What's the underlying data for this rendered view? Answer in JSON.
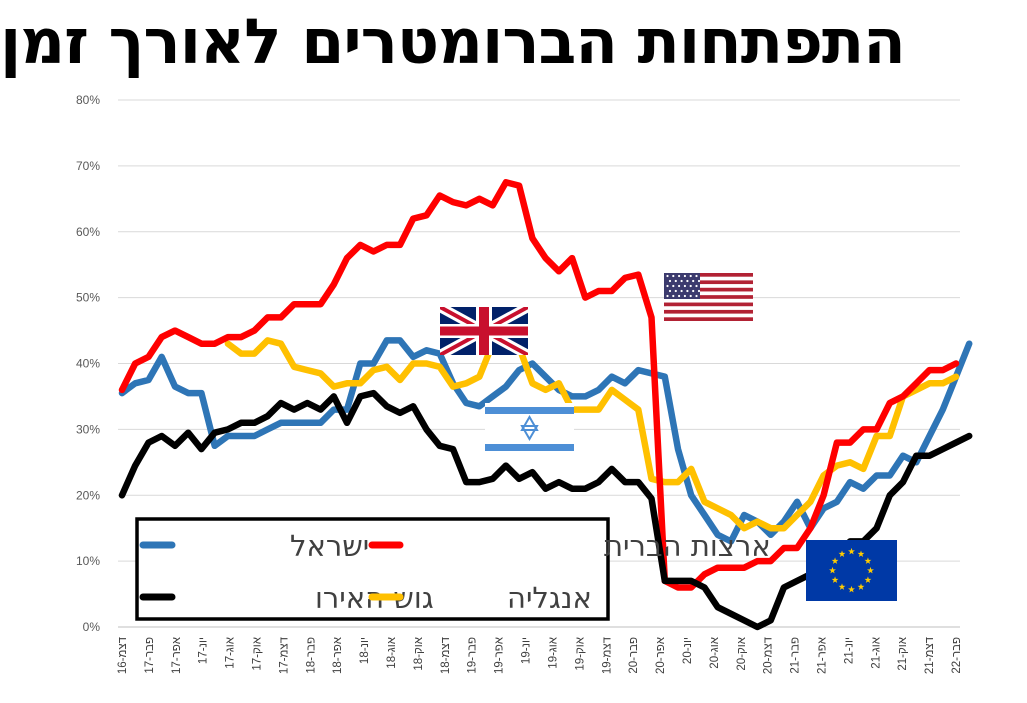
{
  "title": "התפתחות הברומטרים לאורך זמן",
  "chart_data": {
    "type": "line",
    "title": "התפתחות הברומטרים לאורך זמן",
    "xlabel": "",
    "ylabel": "",
    "ylim": [
      0,
      80
    ],
    "yticks": [
      "0%",
      "10%",
      "20%",
      "30%",
      "40%",
      "50%",
      "60%",
      "70%",
      "80%"
    ],
    "grid": true,
    "legend": "bottom-left",
    "x_tick_labels": [
      "דצמ-16",
      "פבר-17",
      "אפר-17",
      "יונ-17",
      "אוג-17",
      "אוק-17",
      "דצמ-17",
      "פבר-18",
      "אפר-18",
      "יונ-18",
      "אוג-18",
      "אוק-18",
      "דצמ-18",
      "פבר-19",
      "אפר-19",
      "יונ-19",
      "אוג-19",
      "אוק-19",
      "דצמ-19",
      "פבר-20",
      "אפר-20",
      "יונ-20",
      "אוג-20",
      "אוק-20",
      "דצמ-20",
      "פבר-21",
      "אפר-21",
      "יונ-21",
      "אוג-21",
      "אוק-21",
      "דצמ-21",
      "פבר-22"
    ],
    "series": [
      {
        "name": "ארצות הברית",
        "color": "#ff0000",
        "flag": "usa-flag",
        "values": [
          36,
          40,
          41,
          44,
          45,
          44,
          43,
          43,
          44,
          44,
          45,
          47,
          47,
          49,
          49,
          49,
          52,
          56,
          58,
          57,
          58,
          58,
          62,
          62.5,
          65.5,
          64.5,
          64,
          65,
          64,
          67.5,
          67,
          59,
          56,
          54,
          56,
          50,
          51,
          51,
          53,
          53.5,
          47,
          7,
          6,
          6,
          8,
          9,
          9,
          9,
          10,
          10,
          12,
          12,
          15,
          20,
          28,
          28,
          30,
          30,
          34,
          35,
          37,
          39,
          39,
          40
        ]
      },
      {
        "name": "ישראל",
        "color": "#2e75b6",
        "flag": "israel-flag",
        "values": [
          35.5,
          37,
          37.5,
          41,
          36.5,
          35.5,
          35.5,
          27.5,
          29,
          29,
          29,
          30,
          31,
          31,
          31,
          31,
          33,
          33,
          40,
          40,
          43.5,
          43.5,
          41,
          42,
          41.5,
          37,
          34,
          33.5,
          35,
          36.5,
          39,
          40,
          38,
          36,
          35,
          35,
          36,
          38,
          37,
          39,
          38.5,
          38,
          27,
          20,
          17,
          14,
          13,
          17,
          16,
          14,
          16,
          19,
          15,
          18,
          19,
          22,
          21,
          23,
          23,
          26,
          25,
          29,
          33,
          38,
          43
        ]
      },
      {
        "name": "גוש האירו",
        "color": "#000000",
        "flag": "eu-flag",
        "values": [
          20,
          24.5,
          28,
          29,
          27.5,
          29.5,
          27,
          29.5,
          30,
          31,
          31,
          32,
          34,
          33,
          34,
          33,
          35,
          31,
          35,
          35.5,
          33.5,
          32.5,
          33.5,
          30,
          27.5,
          27,
          22,
          22,
          22.5,
          24.5,
          22.5,
          23.5,
          21,
          22,
          21,
          21,
          22,
          24,
          22,
          22,
          19.5,
          7,
          7,
          7,
          6,
          3,
          2,
          1,
          0,
          1,
          6,
          7,
          8,
          9,
          11,
          13,
          13,
          15,
          20,
          22,
          26,
          26,
          27,
          28,
          29
        ]
      },
      {
        "name": "אנגליה",
        "color": "#ffc000",
        "flag": "uk-flag",
        "start_index": 8,
        "values": [
          null,
          null,
          null,
          null,
          null,
          null,
          null,
          null,
          43,
          41.5,
          41.5,
          43.5,
          43,
          39.5,
          39,
          38.5,
          36.5,
          37,
          37,
          39,
          39.5,
          37.5,
          40,
          40,
          39.5,
          36.5,
          37,
          38,
          43,
          43.5,
          42.5,
          37,
          36,
          37,
          33,
          33,
          33,
          36,
          34.5,
          33,
          22.5,
          22,
          22,
          24,
          19,
          18,
          17,
          15,
          16,
          15,
          15,
          17,
          19,
          23,
          24.5,
          25,
          24,
          29,
          29,
          35,
          36,
          37,
          37,
          38
        ]
      }
    ]
  }
}
